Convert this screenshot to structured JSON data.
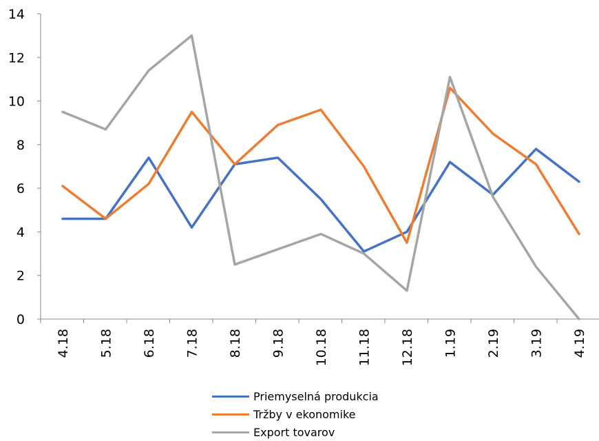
{
  "chart_data": {
    "type": "line",
    "categories": [
      "4.18",
      "5.18",
      "6.18",
      "7.18",
      "8.18",
      "9.18",
      "10.18",
      "11.18",
      "12.18",
      "1.19",
      "2.19",
      "3.19",
      "4.19"
    ],
    "y_ticks": [
      "0",
      "2",
      "4",
      "6",
      "8",
      "10",
      "12",
      "14"
    ],
    "ylim": [
      0,
      14
    ],
    "grid": false,
    "legend_position": "bottom",
    "series": [
      {
        "name": "Priemyselná produkcia",
        "color": "#4472C4",
        "values": [
          4.6,
          4.6,
          7.4,
          4.2,
          7.1,
          7.4,
          5.5,
          3.1,
          4.0,
          7.2,
          5.7,
          7.8,
          6.3
        ]
      },
      {
        "name": "Tržby v ekonomike",
        "color": "#ED7D31",
        "values": [
          6.1,
          4.6,
          6.2,
          9.5,
          7.1,
          8.9,
          9.6,
          7.0,
          3.5,
          10.6,
          8.5,
          7.1,
          3.9
        ]
      },
      {
        "name": "Export tovarov",
        "color": "#A5A5A5",
        "values": [
          9.5,
          8.7,
          11.4,
          13.0,
          2.5,
          3.2,
          3.9,
          3.0,
          1.3,
          11.1,
          5.6,
          2.4,
          0.0
        ]
      }
    ]
  }
}
